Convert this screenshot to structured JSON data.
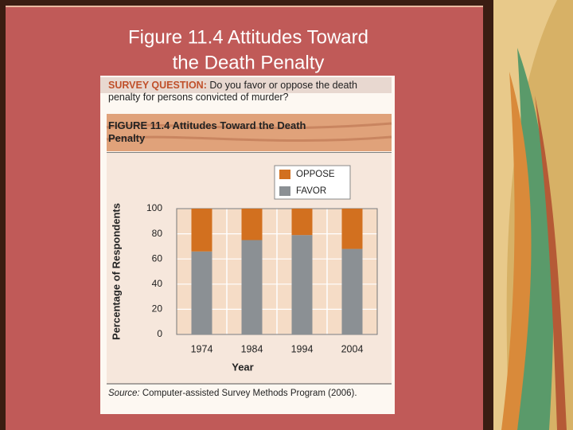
{
  "slide_title_lines": [
    "Figure 11.4 Attitudes Toward",
    "the Death Penalty"
  ],
  "chart_data": {
    "type": "bar",
    "stacked": true,
    "survey_label": "SURVEY QUESTION:",
    "survey_question": "Do you favor or oppose the death penalty for persons convicted of murder?",
    "figure_title": "FIGURE 11.4 Attitudes Toward the Death Penalty",
    "source_label": "Source:",
    "source_text": "Computer-assisted Survey Methods Program (2006).",
    "x_label": "Year",
    "y_label": "Percentage of Respondents",
    "categories": [
      "1974",
      "1984",
      "1994",
      "2004"
    ],
    "series": [
      {
        "name": "FAVOR",
        "color": "#8b9094",
        "values": [
          66,
          75,
          79,
          68
        ]
      },
      {
        "name": "OPPOSE",
        "color": "#d2701f",
        "values": [
          34,
          25,
          21,
          32
        ]
      }
    ],
    "ylim": [
      0,
      100
    ],
    "yticks": [
      0,
      20,
      40,
      60,
      80,
      100
    ],
    "grid": true
  }
}
